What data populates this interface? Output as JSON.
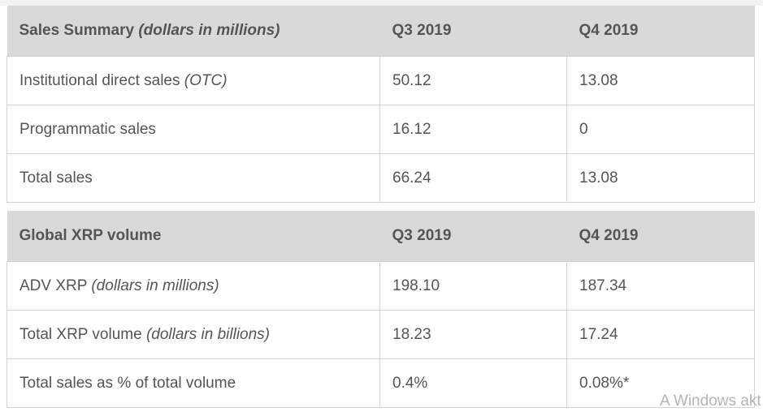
{
  "sales_table": {
    "header": {
      "title": "Sales Summary ",
      "title_note": "(dollars in millions)",
      "col2": "Q3 2019",
      "col3": "Q4 2019"
    },
    "rows": [
      {
        "label": "Institutional direct sales ",
        "note": "(OTC)",
        "q3": "50.12",
        "q4": "13.08"
      },
      {
        "label": "Programmatic sales",
        "note": "",
        "q3": "16.12",
        "q4": "0"
      },
      {
        "label": "Total sales",
        "note": "",
        "q3": "66.24",
        "q4": "13.08"
      }
    ]
  },
  "volume_table": {
    "header": {
      "title": "Global XRP volume",
      "title_note": "",
      "col2": "Q3 2019",
      "col3": "Q4 2019"
    },
    "rows": [
      {
        "label": "ADV XRP ",
        "note": "(dollars in millions)",
        "q3": "198.10",
        "q4": "187.34"
      },
      {
        "label": "Total XRP volume ",
        "note": "(dollars in billions)",
        "q3": "18.23",
        "q4": "17.24"
      },
      {
        "label": "Total sales as % of total volume",
        "note": "",
        "q3": "0.4%",
        "q4": "0.08%*"
      }
    ]
  },
  "watermark": {
    "text": "A Windows akt"
  }
}
